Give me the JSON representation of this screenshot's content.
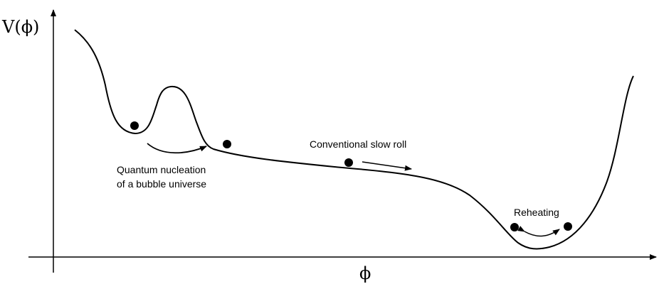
{
  "axes": {
    "y_label": "V(ϕ)",
    "x_label": "ϕ"
  },
  "annotations": {
    "nucleation_line1": "Quantum nucleation",
    "nucleation_line2": "of a bubble universe",
    "slow_roll": "Conventional slow roll",
    "reheating": "Reheating"
  },
  "colors": {
    "ink": "#000000",
    "background": "#ffffff"
  }
}
